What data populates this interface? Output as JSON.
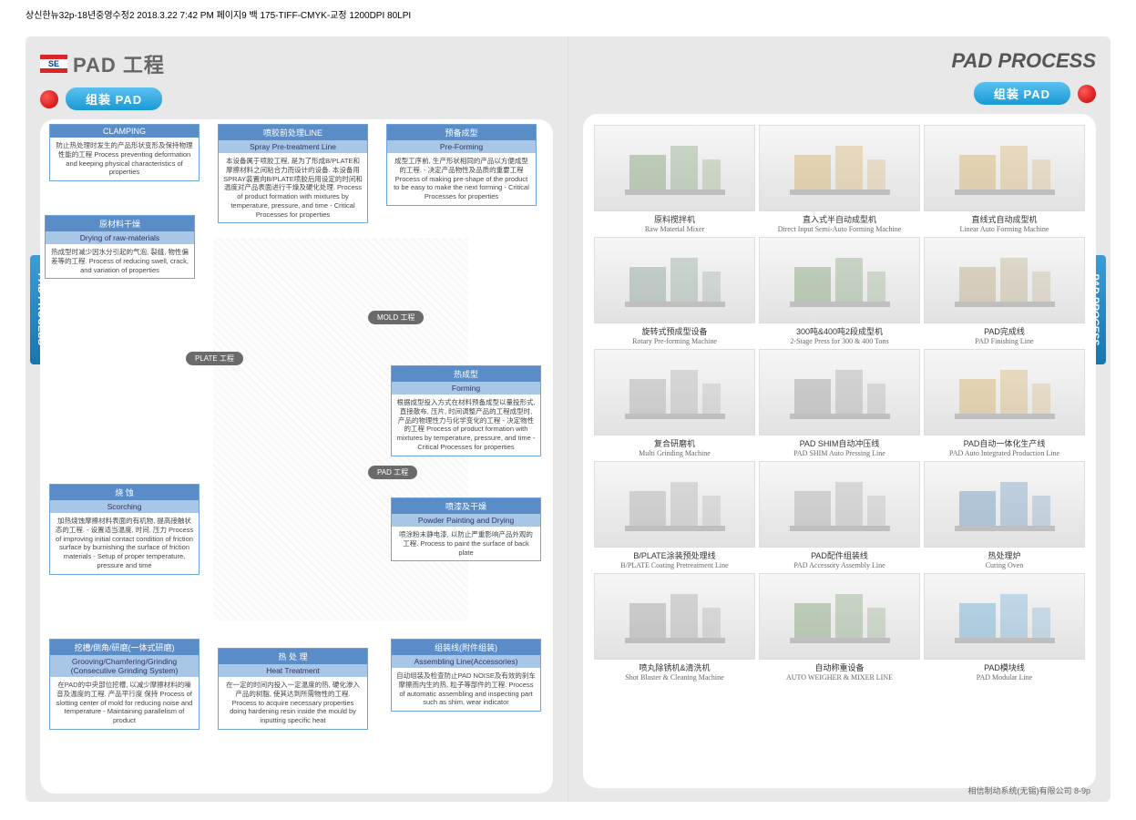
{
  "print_header": "상신한뉴32p-18년중영수정2  2018.3.22 7:42 PM  페이지9   백 175-TIFF-CMYK-교정 1200DPI 80LPI",
  "left": {
    "logo_code": "SE",
    "title": "PAD 工程",
    "pill": "组装  PAD",
    "side_tab": "PAD PROCESS",
    "stage_tags": {
      "plate": "PLATE 工程",
      "mold": "MOLD 工程",
      "pad": "PAD 工程"
    },
    "boxes": {
      "clamping": {
        "h1": "CLAMPING",
        "body": "防止热处理时发生的产品形状变形及保持物理性能的工程\nProcess preventing deformation and keeping physical characteristics of properties"
      },
      "spray": {
        "h1": "喷胶前处理LINE",
        "h2": "Spray Pre-treatment Line",
        "body": "本设备属于喷胶工程, 是为了形成B/PLATE和摩擦材料之间粘合力而设计的设备. 本设备用SPRAY装置向B/PLATE喷胶后用设定的时间和温度对产品表面进行干燥及硬化处理.\nProcess of product formation with mixtures by temperature, pressure, and time\n- Critical Processes for properties"
      },
      "preform": {
        "h1": "预备成型",
        "h2": "Pre-Forming",
        "body": "成型工序前, 生产形状相同的产品以方便成型的工程.\n- 决定产品物性及品质的重要工程\nProcess of making pre-shape of the product to be easy to make the next forming\n- Critical Processes for properties"
      },
      "drying": {
        "h1": "原材料干燥",
        "h2": "Drying of raw-materials",
        "body": "热成型时减少因水分引起的气泡, 裂缝, 物性偏差等的工程.\nProcess of reducing swell, crack, and variation of properties"
      },
      "forming": {
        "h1": "热成型",
        "h2": "Forming",
        "body": "根据成型投入方式在材料预备成型以量投形式, 直接散布, 压片, 时间调整产品的工程成型时, 产品的物理性力与化学变化的工程\n- 决定物性的工程\nProcess of product formation with mixtures by temperature, pressure, and time\n- Critical Processes for properties"
      },
      "scorching": {
        "h1": "烧  蚀",
        "h2": "Scorching",
        "body": "加热烧蚀摩擦材料表面的有机物, 提高接触状态的工程.\n- 设置适当温度, 时间, 压力\nProcess of improving initial contact condition of friction surface by burnishing the surface of friction materials\n- Setup of proper temperature, pressure and time"
      },
      "powder": {
        "h1": "喷漆及干燥",
        "h2": "Powder Painting and Drying",
        "body": "喷涂粉末静电漆, 以防止严重影响产品外观的工程.\nProcess to paint the surface of back plate"
      },
      "grinding": {
        "h1": "挖槽/倒角/研磨(一体式研磨)",
        "h2": "Grooving/Chamfering/Grinding (Consecutive Grinding System)",
        "body": "在PAD的中央部位挖槽, 以减少摩擦材料的噪音及温度的工程. 产品平行度 保持\nProcess of slotting center of mold for reducing noise and temperature\n- Maintaining parallelism of product"
      },
      "heat": {
        "h1": "热 处 理",
        "h2": "Heat Treatment",
        "body": "在一定的时间内投入一定温度的热, 硬化渗入产品的树脂, 使其达到所需物性的工程.\nProcess to acquire necessary properties doing hardening resin inside the mould by inputting specific heat"
      },
      "assembling": {
        "h1": "组装线(附件组装)",
        "h2": "Assembling Line(Accessories)",
        "body": "自动组装及检查防止PAD NOISE及有效的刹车摩擦而内生的热, 粒子等部件的工程.\nProcess of automatic assembling and inspecting part such as shim, wear indicator"
      }
    }
  },
  "right": {
    "title": "PAD PROCESS",
    "pill": "组装  PAD",
    "side_tab": "PAD PROCESS",
    "machines": [
      {
        "cn": "原料搅拌机",
        "en": "Raw Material Mixer",
        "c": "#4a7a3a"
      },
      {
        "cn": "直入式半自动成型机",
        "en": "Direct Input Semi-Auto Forming Machine",
        "c": "#c9922a"
      },
      {
        "cn": "直线式自动成型机",
        "en": "Linear Auto Forming Machine",
        "c": "#c9922a"
      },
      {
        "cn": "旋转式预成型设备",
        "en": "Rotary Pre-forming Machine",
        "c": "#5a7a6a"
      },
      {
        "cn": "300吨&400吨2段成型机",
        "en": "2-Stage Press for 300 & 400 Tons",
        "c": "#4a7a3a"
      },
      {
        "cn": "PAD完成线",
        "en": "PAD Finishing Line",
        "c": "#a08850"
      },
      {
        "cn": "复合研磨机",
        "en": "Multi Grinding Machine",
        "c": "#888888"
      },
      {
        "cn": "PAD SHIM自动冲压线",
        "en": "PAD SHIM Auto Pressing Line",
        "c": "#777777"
      },
      {
        "cn": "PAD自动一体化生产线",
        "en": "PAD Auto Integrated Production Line",
        "c": "#c9922a"
      },
      {
        "cn": "B/PLATE涂装预处理线",
        "en": "B/PLATE Coating Pretreatment Line",
        "c": "#888888"
      },
      {
        "cn": "PAD配件组装线",
        "en": "PAD Accessory Assembly Line",
        "c": "#888888"
      },
      {
        "cn": "热处理炉",
        "en": "Curing Oven",
        "c": "#2a6aa8"
      },
      {
        "cn": "喷丸除锈机&清洗机",
        "en": "Shot Blaster & Cleaning Machine",
        "c": "#777777"
      },
      {
        "cn": "自动称重设备",
        "en": "AUTO WEIGHER & MIXER LINE",
        "c": "#4a7a3a"
      },
      {
        "cn": "PAD模块线",
        "en": "PAD Modular Line",
        "c": "#2a88c8"
      }
    ],
    "footer": "相信制动系统(无锡)有限公司    8-9p"
  }
}
